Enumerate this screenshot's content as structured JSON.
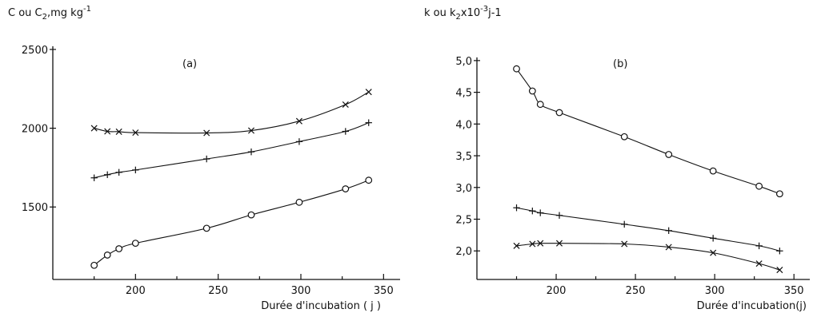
{
  "chart_data": [
    {
      "type": "line",
      "panel_label": "(a)",
      "ylabel": "C ou C",
      "ylabel_sub": "2",
      "ylabel_unit": ",mg kg",
      "ylabel_sup": "-1",
      "xlabel": "Durée d'incubation ( j )",
      "xlim": [
        150,
        360
      ],
      "ylim": [
        1040,
        2530
      ],
      "x_ticks_major": [
        200,
        250,
        300,
        350
      ],
      "x_ticks_minor": [
        175,
        225,
        275,
        325
      ],
      "y_ticks": [
        1500,
        2000,
        2500
      ],
      "x_tick_labels": [
        "200",
        "250",
        "300",
        "350"
      ],
      "y_tick_labels": [
        "1500",
        "2000",
        "2500"
      ],
      "grid": false,
      "series": [
        {
          "marker": "x",
          "x": [
            175,
            183,
            190,
            200,
            243,
            270,
            299,
            327,
            341
          ],
          "y": [
            2000,
            1980,
            1978,
            1972,
            1970,
            1985,
            2045,
            2150,
            2230
          ]
        },
        {
          "marker": "+",
          "x": [
            175,
            183,
            190,
            200,
            243,
            270,
            299,
            327,
            341
          ],
          "y": [
            1685,
            1705,
            1720,
            1735,
            1805,
            1850,
            1915,
            1980,
            2035
          ]
        },
        {
          "marker": "o",
          "x": [
            175,
            183,
            190,
            200,
            243,
            270,
            299,
            327,
            341
          ],
          "y": [
            1130,
            1195,
            1235,
            1270,
            1365,
            1450,
            1530,
            1615,
            1670
          ]
        }
      ]
    },
    {
      "type": "line",
      "panel_label": "(b)",
      "ylabel": "k ou k",
      "ylabel_sub": "2",
      "ylabel_unit": "x10",
      "ylabel_sup": "-3",
      "ylabel_tail": "j-1",
      "xlabel": "Durée d'incubation(j)",
      "xlim": [
        150,
        360
      ],
      "ylim": [
        1.55,
        5.25
      ],
      "x_ticks_major": [
        200,
        250,
        300,
        350
      ],
      "x_ticks_minor": [
        175,
        225,
        275,
        325
      ],
      "y_ticks": [
        2.0,
        2.5,
        3.0,
        3.5,
        4.0,
        4.5,
        5.0
      ],
      "x_tick_labels": [
        "200",
        "250",
        "300",
        "350"
      ],
      "y_tick_labels": [
        "2,0",
        "2,5",
        "3,0",
        "3,5",
        "4,0",
        "4,5",
        "5,0"
      ],
      "grid": false,
      "series": [
        {
          "marker": "o",
          "x": [
            175,
            185,
            190,
            202,
            243,
            271,
            299,
            328,
            341
          ],
          "y": [
            4.87,
            4.52,
            4.31,
            4.18,
            3.8,
            3.52,
            3.26,
            3.02,
            2.9
          ]
        },
        {
          "marker": "+",
          "x": [
            175,
            185,
            190,
            202,
            243,
            271,
            299,
            328,
            341
          ],
          "y": [
            2.68,
            2.63,
            2.6,
            2.56,
            2.42,
            2.32,
            2.2,
            2.08,
            2.0
          ]
        },
        {
          "marker": "x",
          "x": [
            175,
            185,
            190,
            202,
            243,
            271,
            299,
            328,
            341
          ],
          "y": [
            2.08,
            2.11,
            2.12,
            2.12,
            2.11,
            2.06,
            1.97,
            1.8,
            1.7
          ]
        }
      ]
    }
  ]
}
